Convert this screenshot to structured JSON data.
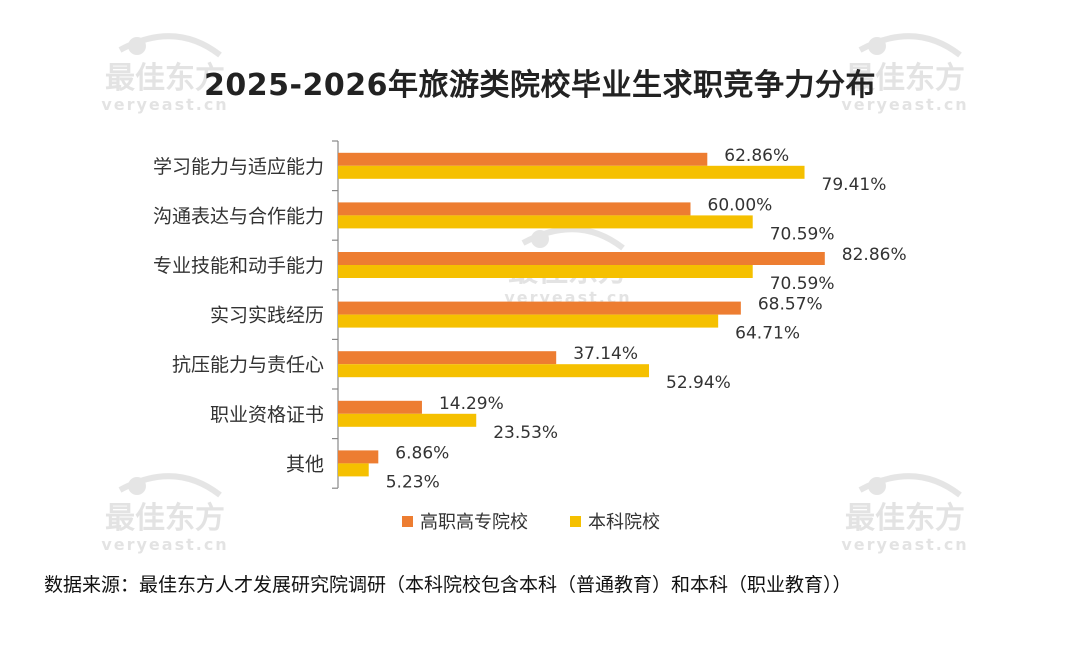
{
  "chart_data": {
    "type": "bar",
    "orientation": "horizontal",
    "title": "2025-2026年旅游类院校毕业生求职竞争力分布",
    "categories": [
      "学习能力与适应能力",
      "沟通表达与合作能力",
      "专业技能和动手能力",
      "实习实践经历",
      "抗压能力与责任心",
      "职业资格证书",
      "其他"
    ],
    "series": [
      {
        "name": "高职高专院校",
        "color": "#ED7D31",
        "values": [
          62.86,
          60.0,
          82.86,
          68.57,
          37.14,
          14.29,
          6.86
        ],
        "labels": [
          "62.86%",
          "60.00%",
          "82.86%",
          "68.57%",
          "37.14%",
          "14.29%",
          "6.86%"
        ]
      },
      {
        "name": "本科院校",
        "color": "#F5C000",
        "values": [
          79.41,
          70.59,
          70.59,
          64.71,
          52.94,
          23.53,
          5.23
        ],
        "labels": [
          "79.41%",
          "70.59%",
          "70.59%",
          "64.71%",
          "52.94%",
          "23.53%",
          "5.23%"
        ]
      }
    ],
    "xlim": [
      0,
      100
    ],
    "grid": false,
    "legend": "bottom"
  },
  "source_note": "数据来源：最佳东方人才发展研究院调研（本科院校包含本科（普通教育）和本科（职业教育））",
  "watermark": {
    "brand": "最佳东方",
    "site": "veryeast.cn"
  }
}
